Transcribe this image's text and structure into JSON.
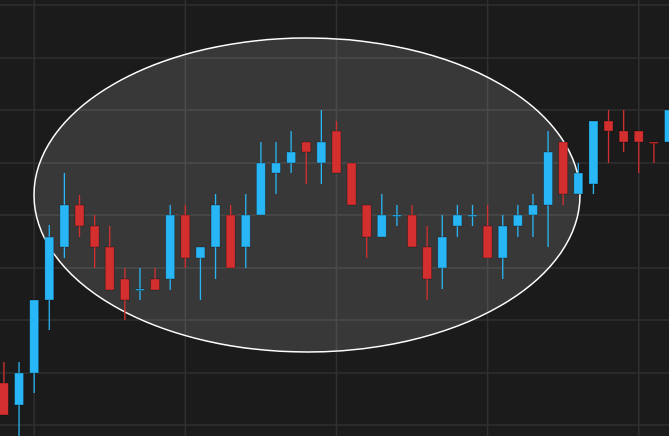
{
  "chart_data": {
    "type": "candlestick",
    "x": [
      0,
      1,
      2,
      3,
      4,
      5,
      6,
      7,
      8,
      9,
      10,
      11,
      12,
      13,
      14,
      15,
      16,
      17,
      18,
      19,
      20,
      21,
      22,
      23,
      24,
      25,
      26,
      27,
      28,
      29,
      30,
      31,
      32,
      33,
      34,
      35,
      36,
      37,
      38,
      39,
      40,
      41,
      42,
      43,
      44
    ],
    "open": [
      53,
      31,
      63,
      136,
      189,
      231,
      210,
      189,
      157,
      146,
      157,
      157,
      221,
      178,
      189,
      221,
      189,
      221,
      263,
      273,
      294,
      273,
      305,
      273,
      231,
      199,
      220,
      221,
      189,
      168,
      210,
      220,
      210,
      178,
      210,
      221,
      231,
      294,
      242,
      252,
      315,
      305,
      305,
      294,
      294
    ],
    "high": [
      74,
      74,
      136,
      211,
      263,
      241,
      221,
      210,
      168,
      168,
      168,
      231,
      231,
      189,
      242,
      231,
      242,
      294,
      294,
      305,
      294,
      326,
      315,
      273,
      231,
      242,
      231,
      231,
      210,
      221,
      231,
      231,
      231,
      221,
      231,
      242,
      305,
      294,
      273,
      315,
      326,
      326,
      305,
      294,
      326
    ],
    "low": [
      21,
      0,
      43,
      106,
      178,
      199,
      168,
      146,
      116,
      136,
      146,
      146,
      168,
      136,
      157,
      168,
      168,
      221,
      242,
      263,
      252,
      252,
      263,
      231,
      178,
      199,
      210,
      189,
      136,
      147,
      199,
      210,
      178,
      157,
      199,
      199,
      189,
      231,
      242,
      242,
      273,
      284,
      263,
      273,
      294
    ],
    "close": [
      21,
      63,
      136,
      199,
      231,
      210,
      189,
      146,
      136,
      147,
      146,
      221,
      178,
      189,
      231,
      168,
      221,
      273,
      273,
      284,
      284,
      294,
      263,
      231,
      199,
      221,
      221,
      189,
      157,
      199,
      221,
      221,
      178,
      210,
      221,
      231,
      284,
      242,
      263,
      315,
      305,
      294,
      294,
      293,
      326
    ],
    "up_color": "#29b6f6",
    "down_color": "#d32f2f",
    "xlim": [
      -0.26,
      44
    ],
    "ylim": [
      0,
      436
    ],
    "xticks": [
      2,
      12,
      22,
      32,
      42
    ],
    "yticks": [
      11,
      63,
      116,
      168,
      221,
      273,
      326,
      378,
      431
    ],
    "grid": true
  }
}
